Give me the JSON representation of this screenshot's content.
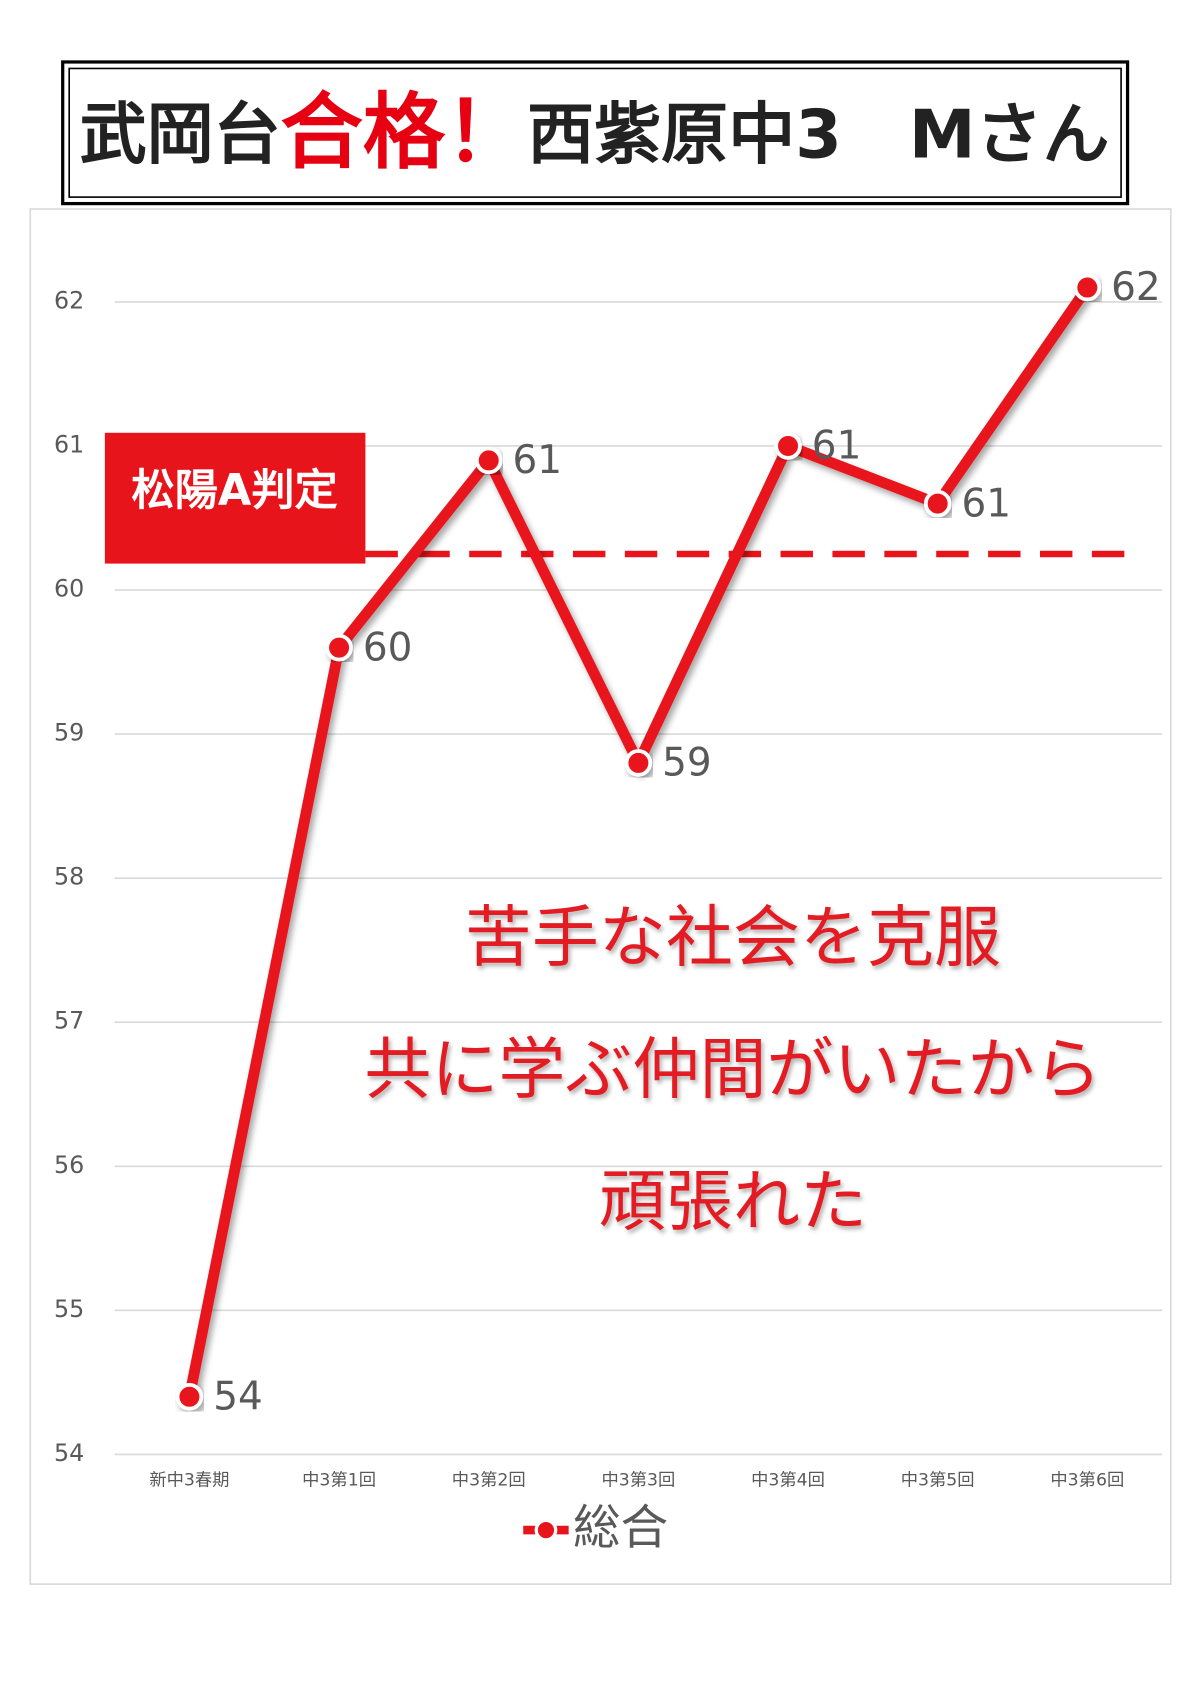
{
  "chart_data": {
    "type": "line",
    "title": [
      "武岡台",
      "合格！",
      "西紫原中3　Mさん"
    ],
    "categories": [
      "新中3春期",
      "中3第1回",
      "中3第2回",
      "中3第3回",
      "中3第4回",
      "中3第5回",
      "中3第6回"
    ],
    "series": [
      {
        "name": "総合",
        "color": "#e8141c",
        "values": [
          54.4,
          59.6,
          60.9,
          58.8,
          61.0,
          60.6,
          62.1
        ],
        "value_labels": [
          "54",
          "60",
          "61",
          "59",
          "61",
          "61",
          "62"
        ]
      }
    ],
    "ylim": [
      54,
      62.6
    ],
    "yticks": [
      54,
      55,
      56,
      57,
      58,
      59,
      60,
      61,
      62
    ],
    "grid": true,
    "reference_line": {
      "label": "松陽A判定",
      "value": 60.25,
      "color": "#e8141c"
    },
    "annotation": [
      "苦手な社会を克服",
      "共に学ぶ仲間がいたから",
      "頑張れた"
    ],
    "legend": "bottom"
  }
}
